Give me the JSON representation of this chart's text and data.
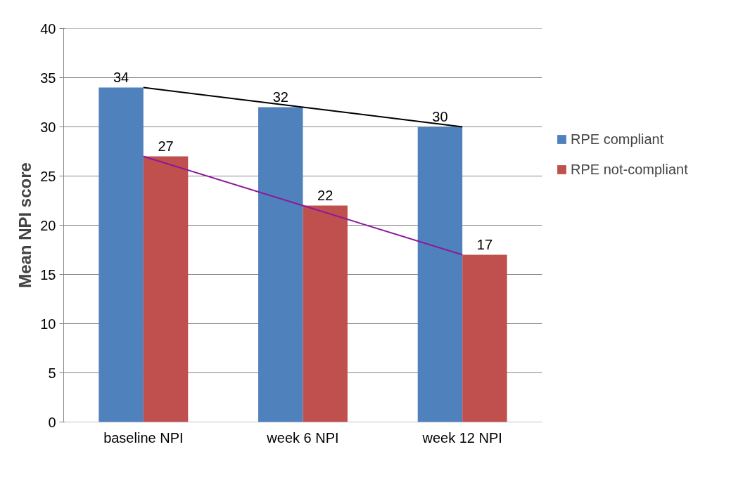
{
  "chart_data": {
    "type": "bar",
    "ylabel": "Mean NPI score",
    "categories": [
      "baseline NPI",
      "week 6 NPI",
      "week 12 NPI"
    ],
    "series": [
      {
        "name": "RPE compliant",
        "color": "#4f81bd",
        "values": [
          34,
          32,
          30
        ],
        "value_labels": [
          "34",
          "32",
          "30"
        ]
      },
      {
        "name": "RPE not-compliant",
        "color": "#c0504d",
        "values": [
          27,
          22,
          17
        ],
        "value_labels": [
          "27",
          "22",
          "17"
        ]
      },
      {
        "type": "line",
        "color": "#000000",
        "values": [
          34,
          32,
          30
        ]
      },
      {
        "type": "line",
        "color": "#8b1a9a",
        "values": [
          27,
          22,
          17
        ]
      }
    ],
    "ylim": [
      0,
      40
    ],
    "yticks": [
      0,
      5,
      10,
      15,
      20,
      25,
      30,
      35,
      40
    ],
    "grid": "y",
    "legend": "right"
  }
}
